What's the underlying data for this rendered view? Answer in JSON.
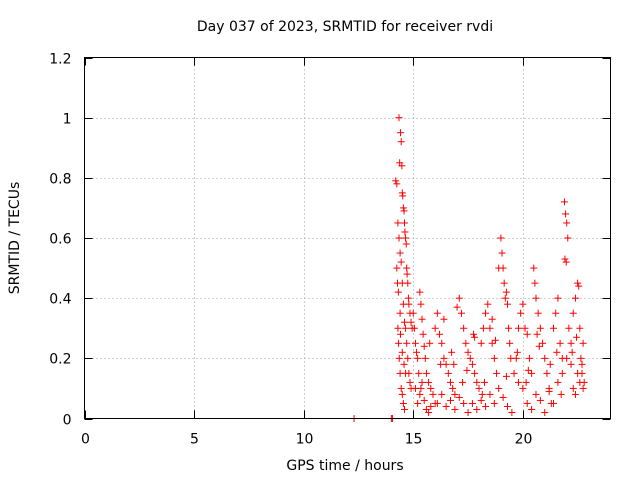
{
  "chart_data": {
    "type": "scatter",
    "title": "Day 037 of 2023, SRMTID for receiver rvdi",
    "xlabel": "GPS time / hours",
    "ylabel": "SRMTID / TECUs",
    "xlim": [
      0,
      24
    ],
    "ylim": [
      0,
      1.2
    ],
    "xticks": [
      0,
      5,
      10,
      15,
      20
    ],
    "xtick_labels": [
      "0",
      "5",
      "10",
      "15",
      "20"
    ],
    "yticks": [
      0,
      0.2,
      0.4,
      0.6,
      0.8,
      1,
      1.2
    ],
    "ytick_labels": [
      "0",
      "0.2",
      "0.4",
      "0.6",
      "0.8",
      "1",
      "1.2"
    ],
    "grid": true,
    "marker": "plus",
    "series_color": "#ff0000",
    "series": [
      {
        "name": "rvdi",
        "points": [
          [
            12.3,
            0.0
          ],
          [
            14.0,
            0.0
          ],
          [
            14.05,
            0.0
          ],
          [
            14.2,
            0.79
          ],
          [
            14.25,
            0.78
          ],
          [
            14.3,
            0.65
          ],
          [
            14.35,
            0.6
          ],
          [
            14.4,
            0.55
          ],
          [
            14.45,
            0.52
          ],
          [
            14.5,
            0.45
          ],
          [
            14.55,
            0.38
          ],
          [
            14.6,
            0.32
          ],
          [
            14.65,
            0.3
          ],
          [
            14.7,
            0.25
          ],
          [
            14.75,
            0.2
          ],
          [
            14.8,
            0.15
          ],
          [
            14.85,
            0.12
          ],
          [
            14.9,
            0.1
          ],
          [
            14.35,
            1.0
          ],
          [
            14.42,
            0.95
          ],
          [
            14.45,
            0.92
          ],
          [
            14.38,
            0.85
          ],
          [
            14.48,
            0.84
          ],
          [
            14.5,
            0.75
          ],
          [
            14.52,
            0.74
          ],
          [
            14.55,
            0.7
          ],
          [
            14.58,
            0.69
          ],
          [
            14.6,
            0.65
          ],
          [
            14.62,
            0.62
          ],
          [
            14.65,
            0.6
          ],
          [
            14.68,
            0.58
          ],
          [
            14.7,
            0.5
          ],
          [
            14.72,
            0.48
          ],
          [
            14.75,
            0.45
          ],
          [
            14.78,
            0.4
          ],
          [
            14.8,
            0.38
          ],
          [
            14.85,
            0.35
          ],
          [
            14.9,
            0.32
          ],
          [
            14.95,
            0.3
          ],
          [
            14.3,
            0.3
          ],
          [
            14.33,
            0.25
          ],
          [
            14.36,
            0.2
          ],
          [
            14.4,
            0.15
          ],
          [
            14.45,
            0.1
          ],
          [
            14.5,
            0.08
          ],
          [
            14.55,
            0.05
          ],
          [
            14.6,
            0.03
          ],
          [
            14.25,
            0.5
          ],
          [
            14.28,
            0.45
          ],
          [
            14.32,
            0.42
          ],
          [
            14.4,
            0.35
          ],
          [
            14.42,
            0.28
          ],
          [
            14.5,
            0.22
          ],
          [
            14.58,
            0.18
          ],
          [
            14.65,
            0.15
          ],
          [
            15.0,
            0.35
          ],
          [
            15.05,
            0.3
          ],
          [
            15.1,
            0.25
          ],
          [
            15.15,
            0.22
          ],
          [
            15.2,
            0.2
          ],
          [
            15.3,
            0.42
          ],
          [
            15.35,
            0.38
          ],
          [
            15.4,
            0.33
          ],
          [
            15.45,
            0.28
          ],
          [
            15.5,
            0.24
          ],
          [
            15.55,
            0.2
          ],
          [
            15.6,
            0.15
          ],
          [
            15.7,
            0.12
          ],
          [
            15.8,
            0.1
          ],
          [
            15.9,
            0.08
          ],
          [
            16.0,
            0.05
          ],
          [
            15.1,
            0.1
          ],
          [
            15.2,
            0.05
          ],
          [
            15.3,
            0.08
          ],
          [
            15.4,
            0.12
          ],
          [
            15.5,
            0.06
          ],
          [
            15.6,
            0.03
          ],
          [
            15.7,
            0.02
          ],
          [
            15.8,
            0.04
          ],
          [
            16.0,
            0.3
          ],
          [
            16.1,
            0.35
          ],
          [
            16.2,
            0.28
          ],
          [
            16.3,
            0.25
          ],
          [
            16.4,
            0.2
          ],
          [
            16.5,
            0.18
          ],
          [
            16.6,
            0.15
          ],
          [
            16.7,
            0.12
          ],
          [
            16.8,
            0.1
          ],
          [
            16.9,
            0.08
          ],
          [
            17.0,
            0.37
          ],
          [
            17.1,
            0.4
          ],
          [
            17.2,
            0.35
          ],
          [
            17.3,
            0.3
          ],
          [
            17.4,
            0.25
          ],
          [
            17.5,
            0.22
          ],
          [
            16.1,
            0.05
          ],
          [
            16.3,
            0.08
          ],
          [
            16.5,
            0.04
          ],
          [
            16.7,
            0.06
          ],
          [
            16.9,
            0.03
          ],
          [
            17.1,
            0.07
          ],
          [
            17.3,
            0.05
          ],
          [
            17.5,
            0.02
          ],
          [
            17.6,
            0.2
          ],
          [
            17.7,
            0.18
          ],
          [
            17.8,
            0.15
          ],
          [
            17.9,
            0.12
          ],
          [
            18.0,
            0.1
          ],
          [
            18.1,
            0.25
          ],
          [
            18.2,
            0.3
          ],
          [
            18.3,
            0.35
          ],
          [
            18.4,
            0.38
          ],
          [
            18.5,
            0.3
          ],
          [
            18.6,
            0.25
          ],
          [
            18.7,
            0.2
          ],
          [
            18.8,
            0.15
          ],
          [
            18.9,
            0.5
          ],
          [
            19.0,
            0.6
          ],
          [
            19.05,
            0.55
          ],
          [
            19.1,
            0.5
          ],
          [
            19.15,
            0.45
          ],
          [
            19.2,
            0.4
          ],
          [
            19.25,
            0.42
          ],
          [
            19.3,
            0.38
          ],
          [
            19.35,
            0.3
          ],
          [
            19.4,
            0.25
          ],
          [
            19.45,
            0.2
          ],
          [
            17.7,
            0.05
          ],
          [
            17.9,
            0.03
          ],
          [
            18.1,
            0.06
          ],
          [
            18.3,
            0.04
          ],
          [
            18.5,
            0.08
          ],
          [
            18.7,
            0.05
          ],
          [
            18.9,
            0.1
          ],
          [
            19.1,
            0.07
          ],
          [
            19.3,
            0.04
          ],
          [
            19.5,
            0.02
          ],
          [
            19.6,
            0.15
          ],
          [
            19.7,
            0.2
          ],
          [
            19.8,
            0.3
          ],
          [
            19.9,
            0.35
          ],
          [
            20.0,
            0.38
          ],
          [
            20.1,
            0.3
          ],
          [
            20.2,
            0.28
          ],
          [
            20.3,
            0.2
          ],
          [
            20.4,
            0.15
          ],
          [
            20.5,
            0.5
          ],
          [
            20.55,
            0.45
          ],
          [
            20.6,
            0.4
          ],
          [
            20.7,
            0.35
          ],
          [
            20.8,
            0.3
          ],
          [
            20.9,
            0.25
          ],
          [
            21.0,
            0.2
          ],
          [
            21.1,
            0.15
          ],
          [
            21.2,
            0.1
          ],
          [
            21.3,
            0.05
          ],
          [
            21.4,
            0.3
          ],
          [
            21.5,
            0.35
          ],
          [
            21.6,
            0.4
          ],
          [
            21.7,
            0.25
          ],
          [
            21.8,
            0.2
          ],
          [
            21.9,
            0.72
          ],
          [
            21.95,
            0.68
          ],
          [
            22.0,
            0.65
          ],
          [
            22.05,
            0.6
          ],
          [
            21.92,
            0.53
          ],
          [
            21.98,
            0.52
          ],
          [
            22.1,
            0.3
          ],
          [
            22.2,
            0.25
          ],
          [
            22.3,
            0.35
          ],
          [
            22.4,
            0.4
          ],
          [
            22.5,
            0.45
          ],
          [
            22.55,
            0.44
          ],
          [
            22.6,
            0.3
          ],
          [
            22.65,
            0.2
          ],
          [
            22.7,
            0.15
          ],
          [
            22.75,
            0.1
          ],
          [
            22.8,
            0.12
          ],
          [
            22.3,
            0.1
          ],
          [
            22.4,
            0.08
          ],
          [
            22.5,
            0.15
          ],
          [
            22.6,
            0.12
          ],
          [
            22.7,
            0.18
          ],
          [
            20.0,
            0.1
          ],
          [
            20.2,
            0.05
          ],
          [
            20.4,
            0.03
          ],
          [
            20.6,
            0.08
          ],
          [
            20.8,
            0.06
          ],
          [
            21.0,
            0.02
          ],
          [
            21.2,
            0.09
          ],
          [
            21.4,
            0.05
          ],
          [
            21.6,
            0.12
          ],
          [
            21.8,
            0.15
          ],
          [
            22.0,
            0.2
          ],
          [
            22.2,
            0.18
          ],
          [
            16.4,
            0.33
          ],
          [
            17.8,
            0.27
          ],
          [
            18.6,
            0.33
          ],
          [
            19.8,
            0.12
          ],
          [
            15.25,
            0.15
          ],
          [
            15.75,
            0.25
          ],
          [
            16.25,
            0.18
          ],
          [
            16.75,
            0.22
          ],
          [
            17.25,
            0.12
          ],
          [
            17.75,
            0.28
          ],
          [
            18.25,
            0.12
          ],
          [
            18.75,
            0.26
          ],
          [
            19.25,
            0.14
          ],
          [
            19.75,
            0.22
          ],
          [
            20.25,
            0.16
          ],
          [
            20.75,
            0.24
          ],
          [
            21.25,
            0.18
          ],
          [
            21.75,
            0.08
          ],
          [
            22.25,
            0.22
          ],
          [
            22.75,
            0.25
          ],
          [
            15.35,
            0.1
          ],
          [
            16.85,
            0.18
          ],
          [
            17.45,
            0.16
          ],
          [
            18.15,
            0.08
          ],
          [
            20.15,
            0.12
          ],
          [
            20.65,
            0.28
          ],
          [
            21.55,
            0.22
          ],
          [
            22.45,
            0.27
          ]
        ]
      }
    ]
  }
}
